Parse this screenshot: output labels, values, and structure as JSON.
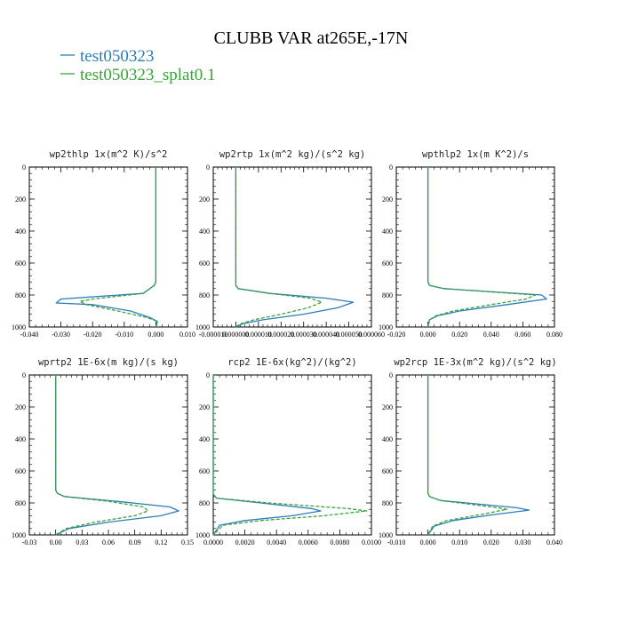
{
  "figure_title": "CLUBB VAR at265E,-17N",
  "colors": {
    "series1": "#2e7db8",
    "series2": "#3aa33a"
  },
  "legend": [
    {
      "label": "test050323",
      "color": "#2e7db8"
    },
    {
      "label": "test050323_splat0.1",
      "color": "#3aa33a"
    }
  ],
  "chart_data": [
    {
      "type": "line",
      "title": "wp2thlp   1x(m^2 K)/s^2",
      "xlim": [
        -0.04,
        0.01
      ],
      "ylim": [
        1000,
        0
      ],
      "xticks": [
        -0.04,
        -0.03,
        -0.02,
        -0.01,
        0.0,
        0.01
      ],
      "xtick_labels": [
        "-0.040",
        "-0.030",
        "-0.020",
        "-0.010",
        "0.000",
        "0.010"
      ],
      "yticks": [
        0,
        200,
        400,
        600,
        800,
        1000
      ],
      "ytick_labels": [
        "0",
        "200",
        "400",
        "600",
        "800",
        "1000"
      ],
      "series": [
        {
          "name": "test050323",
          "style": "solid",
          "x": [
            0.0,
            0.0,
            -0.0005,
            -0.004,
            -0.03,
            -0.0315,
            -0.02,
            -0.008,
            -0.002,
            0.0005,
            0.0
          ],
          "y": [
            0,
            720,
            740,
            790,
            825,
            850,
            860,
            900,
            940,
            965,
            1000
          ]
        },
        {
          "name": "test050323_splat0.1",
          "style": "dashed",
          "x": [
            0.0,
            0.0,
            -0.0005,
            -0.004,
            -0.02,
            -0.024,
            -0.022,
            -0.012,
            -0.003,
            0.0005,
            0.0
          ],
          "y": [
            0,
            720,
            740,
            790,
            825,
            840,
            860,
            900,
            940,
            965,
            1000
          ]
        }
      ]
    },
    {
      "type": "line",
      "title": "wp2rtp   1x(m^2 kg)/(s^2 kg)",
      "xlim": [
        -1e-05,
        6e-05
      ],
      "ylim": [
        1000,
        0
      ],
      "xticks": [
        -1e-05,
        0.0,
        1e-05,
        2e-05,
        3e-05,
        4e-05,
        5e-05,
        6e-05
      ],
      "xtick_labels": [
        "-0.000010",
        "0.000000",
        "0.000010",
        "0.000020",
        "0.000030",
        "0.000040",
        "0.000050",
        "0.000060"
      ],
      "yticks": [
        0,
        200,
        400,
        600,
        800,
        1000
      ],
      "ytick_labels": [
        "0",
        "200",
        "400",
        "600",
        "800",
        "1000"
      ],
      "series": [
        {
          "name": "test050323",
          "style": "solid",
          "x": [
            0.0,
            0.0,
            1e-06,
            1.5e-05,
            4e-05,
            5.2e-05,
            4.5e-05,
            3e-05,
            1.2e-05,
            3e-06,
            0.0
          ],
          "y": [
            0,
            740,
            760,
            790,
            820,
            845,
            880,
            920,
            955,
            980,
            1000
          ]
        },
        {
          "name": "test050323_splat0.1",
          "style": "dashed",
          "x": [
            0.0,
            0.0,
            1e-06,
            1.5e-05,
            3.3e-05,
            3.8e-05,
            3.2e-05,
            2e-05,
            8e-06,
            2e-06,
            0.0
          ],
          "y": [
            0,
            740,
            760,
            790,
            820,
            845,
            880,
            920,
            955,
            980,
            1000
          ]
        }
      ]
    },
    {
      "type": "line",
      "title": "wpthlp2   1x(m K^2)/s",
      "xlim": [
        -0.02,
        0.08
      ],
      "ylim": [
        1000,
        0
      ],
      "xticks": [
        -0.02,
        0.0,
        0.02,
        0.04,
        0.06,
        0.08
      ],
      "xtick_labels": [
        "-0.020",
        "0.000",
        "0.020",
        "0.040",
        "0.060",
        "0.080"
      ],
      "yticks": [
        0,
        200,
        400,
        600,
        800,
        1000
      ],
      "ytick_labels": [
        "0",
        "200",
        "400",
        "600",
        "800",
        "1000"
      ],
      "series": [
        {
          "name": "test050323",
          "style": "solid",
          "x": [
            0.0,
            0.0,
            0.001,
            0.01,
            0.072,
            0.075,
            0.05,
            0.02,
            0.006,
            0.001,
            0.0
          ],
          "y": [
            0,
            720,
            740,
            760,
            800,
            825,
            860,
            900,
            930,
            955,
            1000
          ]
        },
        {
          "name": "test050323_splat0.1",
          "style": "dashed",
          "x": [
            0.0,
            0.0,
            0.001,
            0.01,
            0.068,
            0.062,
            0.04,
            0.016,
            0.005,
            0.001,
            0.0
          ],
          "y": [
            0,
            720,
            740,
            760,
            800,
            825,
            860,
            900,
            930,
            955,
            1000
          ]
        }
      ]
    },
    {
      "type": "line",
      "title": "wprtp2   1E-6x(m kg)/(s kg)",
      "xlim": [
        -0.03,
        0.15
      ],
      "ylim": [
        1000,
        0
      ],
      "xticks": [
        -0.03,
        0.0,
        0.03,
        0.06,
        0.09,
        0.12,
        0.15
      ],
      "xtick_labels": [
        "-0.03",
        "0.00",
        "0.03",
        "0.06",
        "0.09",
        "0.12",
        "0.15"
      ],
      "yticks": [
        0,
        200,
        400,
        600,
        800,
        1000
      ],
      "ytick_labels": [
        "0",
        "200",
        "400",
        "600",
        "800",
        "1000"
      ],
      "series": [
        {
          "name": "test050323",
          "style": "solid",
          "x": [
            0.0,
            0.0,
            0.002,
            0.01,
            0.07,
            0.13,
            0.14,
            0.12,
            0.06,
            0.015,
            0.0
          ],
          "y": [
            0,
            720,
            740,
            760,
            790,
            825,
            850,
            880,
            920,
            960,
            1000
          ]
        },
        {
          "name": "test050323_splat0.1",
          "style": "dashed",
          "x": [
            0.0,
            0.0,
            0.002,
            0.01,
            0.06,
            0.1,
            0.105,
            0.09,
            0.045,
            0.012,
            0.0
          ],
          "y": [
            0,
            720,
            740,
            760,
            790,
            825,
            850,
            880,
            920,
            960,
            1000
          ]
        }
      ]
    },
    {
      "type": "line",
      "title": "rcp2   1E-6x(kg^2)/(kg^2)",
      "xlim": [
        0.0,
        0.01
      ],
      "ylim": [
        1000,
        0
      ],
      "xticks": [
        0.0,
        0.002,
        0.004,
        0.006,
        0.008,
        0.01
      ],
      "xtick_labels": [
        "0.0000",
        "0.0020",
        "0.0040",
        "0.0060",
        "0.0080",
        "0.0100"
      ],
      "yticks": [
        0,
        200,
        400,
        600,
        800,
        1000
      ],
      "ytick_labels": [
        "0",
        "200",
        "400",
        "600",
        "800",
        "1000"
      ],
      "series": [
        {
          "name": "test050323",
          "style": "solid",
          "x": [
            0.0,
            0.0,
            0.0002,
            0.003,
            0.0062,
            0.0068,
            0.005,
            0.002,
            0.0004,
            0.0
          ],
          "y": [
            0,
            745,
            770,
            800,
            835,
            850,
            880,
            910,
            940,
            1000
          ]
        },
        {
          "name": "test050323_splat0.1",
          "style": "dashed",
          "x": [
            0.0,
            0.0,
            0.0002,
            0.0035,
            0.0085,
            0.0097,
            0.007,
            0.003,
            0.0006,
            0.0
          ],
          "y": [
            0,
            745,
            770,
            800,
            835,
            850,
            880,
            910,
            940,
            1000
          ]
        }
      ]
    },
    {
      "type": "line",
      "title": "wp2rcp   1E-3x(m^2 kg)/(s^2 kg)",
      "xlim": [
        -0.01,
        0.04
      ],
      "ylim": [
        1000,
        0
      ],
      "xticks": [
        -0.01,
        0.0,
        0.01,
        0.02,
        0.03,
        0.04
      ],
      "xtick_labels": [
        "-0.010",
        "0.000",
        "0.010",
        "0.020",
        "0.030",
        "0.040"
      ],
      "yticks": [
        0,
        200,
        400,
        600,
        800,
        1000
      ],
      "ytick_labels": [
        "0",
        "200",
        "400",
        "600",
        "800",
        "1000"
      ],
      "series": [
        {
          "name": "test050323",
          "style": "solid",
          "x": [
            0.0,
            0.0,
            0.0005,
            0.004,
            0.028,
            0.032,
            0.02,
            0.008,
            0.002,
            0.0
          ],
          "y": [
            0,
            740,
            760,
            785,
            830,
            845,
            875,
            910,
            945,
            1000
          ]
        },
        {
          "name": "test050323_splat0.1",
          "style": "dashed",
          "x": [
            0.0,
            0.0,
            0.0005,
            0.004,
            0.022,
            0.025,
            0.016,
            0.006,
            0.0015,
            0.0
          ],
          "y": [
            0,
            740,
            760,
            785,
            830,
            840,
            875,
            910,
            945,
            1000
          ]
        }
      ]
    }
  ]
}
